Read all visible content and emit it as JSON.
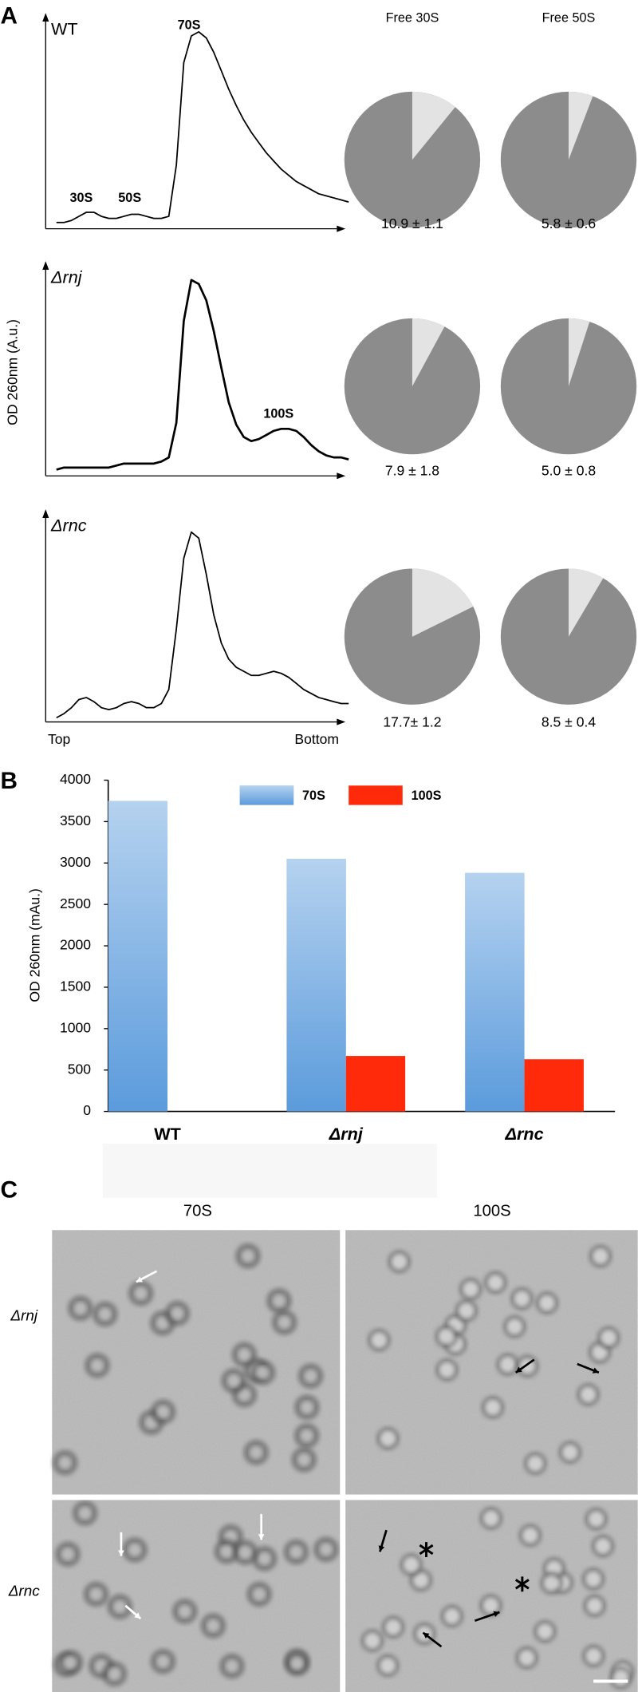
{
  "panel_labels": [
    "A",
    "B",
    "C"
  ],
  "chart_data": [
    {
      "type": "line",
      "ylabel": "OD 260nm (A.u.)",
      "x_labels": [
        "Top",
        "Bottom"
      ],
      "ylim": [
        0,
        100
      ],
      "series": [
        {
          "name": "WT",
          "color": "#000000",
          "labels": [
            "30S",
            "50S",
            "70S"
          ],
          "values": [
            2,
            2,
            3,
            5,
            7,
            7,
            5,
            4,
            4,
            5,
            6,
            6,
            5,
            4,
            4,
            5,
            30,
            80,
            93,
            95,
            92,
            85,
            76,
            67,
            59,
            52,
            46,
            41,
            36,
            32,
            28,
            25,
            22,
            20,
            18,
            16,
            15,
            14,
            13,
            12
          ]
        },
        {
          "name": "Δrnj",
          "color": "#000000",
          "labels": [
            "100S"
          ],
          "values": [
            2,
            3,
            3,
            3,
            3,
            3,
            3,
            3,
            4,
            5,
            5,
            5,
            5,
            5,
            6,
            8,
            25,
            75,
            95,
            93,
            85,
            70,
            52,
            35,
            24,
            18,
            16,
            17,
            19,
            21,
            22,
            22,
            21,
            18,
            14,
            11,
            9,
            8,
            8,
            7
          ]
        },
        {
          "name": "Δrnc",
          "color": "#000000",
          "labels": [],
          "values": [
            1,
            3,
            6,
            10,
            11,
            9,
            6,
            5,
            6,
            8,
            9,
            8,
            6,
            6,
            8,
            15,
            45,
            80,
            93,
            90,
            72,
            52,
            38,
            30,
            26,
            24,
            22,
            22,
            23,
            24,
            23,
            21,
            18,
            15,
            13,
            11,
            10,
            9,
            8,
            8
          ]
        }
      ]
    },
    {
      "type": "pie",
      "titles": [
        "Free 30S",
        "Free 50S"
      ],
      "color": "#8c8c8c",
      "highlight_color": "#e3e3e3",
      "rows": [
        {
          "values": [
            10.9,
            5.8
          ],
          "value_labels": [
            "10.9 ± 1.1",
            "5.8 ± 0.6"
          ]
        },
        {
          "values": [
            7.9,
            5.0
          ],
          "value_labels": [
            "7.9 ± 1.8",
            "5.0 ± 0.8"
          ]
        },
        {
          "values": [
            17.7,
            8.5
          ],
          "value_labels": [
            "17.7± 1.2",
            "8.5 ± 0.4"
          ]
        }
      ]
    },
    {
      "type": "bar",
      "ylabel": "OD 260nm (mAu.)",
      "categories": [
        "WT",
        "Δrnj",
        "Δrnc"
      ],
      "ylim": [
        0,
        4000
      ],
      "yticks": [
        0,
        500,
        1000,
        1500,
        2000,
        2500,
        3000,
        3500,
        4000
      ],
      "series": [
        {
          "name": "70S",
          "color": "#5b9bdc",
          "gradient": true,
          "values": [
            3750,
            3050,
            2880
          ]
        },
        {
          "name": "100S",
          "color": "#ff2a0a",
          "gradient": false,
          "values": [
            null,
            670,
            630
          ]
        }
      ]
    }
  ],
  "micrographs": {
    "columns": [
      "70S",
      "100S"
    ],
    "rows": [
      "Δrnj",
      "Δrnc"
    ]
  }
}
